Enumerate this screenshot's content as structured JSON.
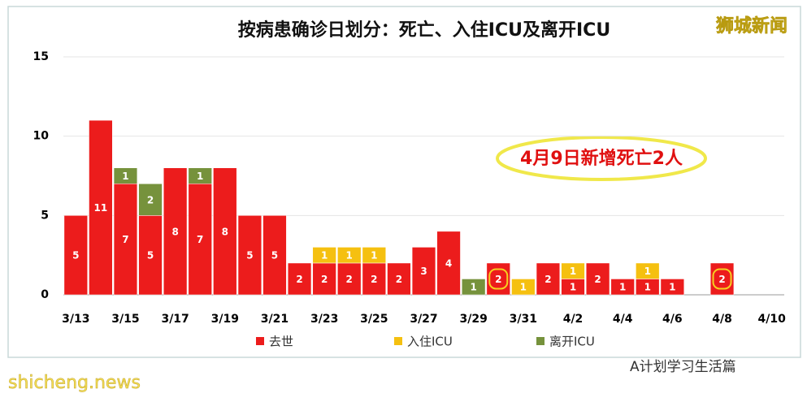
{
  "chart_data": {
    "type": "bar",
    "stacked": true,
    "title": "按病患确诊日划分：死亡、入住ICU及离开ICU",
    "categories": [
      "3/13",
      null,
      "3/15",
      null,
      "3/17",
      null,
      "3/19",
      null,
      "3/21",
      null,
      "3/23",
      null,
      "3/25",
      null,
      "3/27",
      null,
      "3/29",
      null,
      "3/31",
      null,
      "4/2",
      null,
      "4/4",
      null,
      "4/6",
      null,
      "4/8",
      null,
      "4/10"
    ],
    "series": [
      {
        "name": "去世",
        "color": "#ec1c1c",
        "values": [
          5,
          11,
          7,
          5,
          8,
          7,
          8,
          5,
          5,
          2,
          2,
          2,
          2,
          2,
          3,
          4,
          null,
          2,
          null,
          2,
          1,
          2,
          1,
          1,
          1,
          null,
          2,
          null,
          null
        ]
      },
      {
        "name": "入住ICU",
        "color": "#f5c010",
        "values": [
          null,
          null,
          null,
          null,
          null,
          null,
          null,
          null,
          null,
          null,
          1,
          1,
          1,
          null,
          null,
          null,
          null,
          null,
          1,
          null,
          1,
          null,
          null,
          1,
          null,
          null,
          null,
          null,
          null
        ]
      },
      {
        "name": "离开ICU",
        "color": "#76923c",
        "values": [
          null,
          null,
          1,
          2,
          null,
          1,
          null,
          null,
          null,
          null,
          null,
          null,
          null,
          null,
          null,
          null,
          1,
          null,
          null,
          null,
          null,
          null,
          null,
          null,
          null,
          null,
          null,
          null,
          null
        ]
      }
    ],
    "highlight": [
      17,
      26
    ],
    "ylim": [
      0,
      15
    ],
    "yticks": [
      0,
      5,
      10,
      15
    ],
    "grid": true,
    "legend": "bottom",
    "annotation": "4月9日新增死亡2人",
    "watermark": "狮城新闻",
    "footer_site": "shicheng.news",
    "footer_account": "A计划学习生活篇"
  }
}
